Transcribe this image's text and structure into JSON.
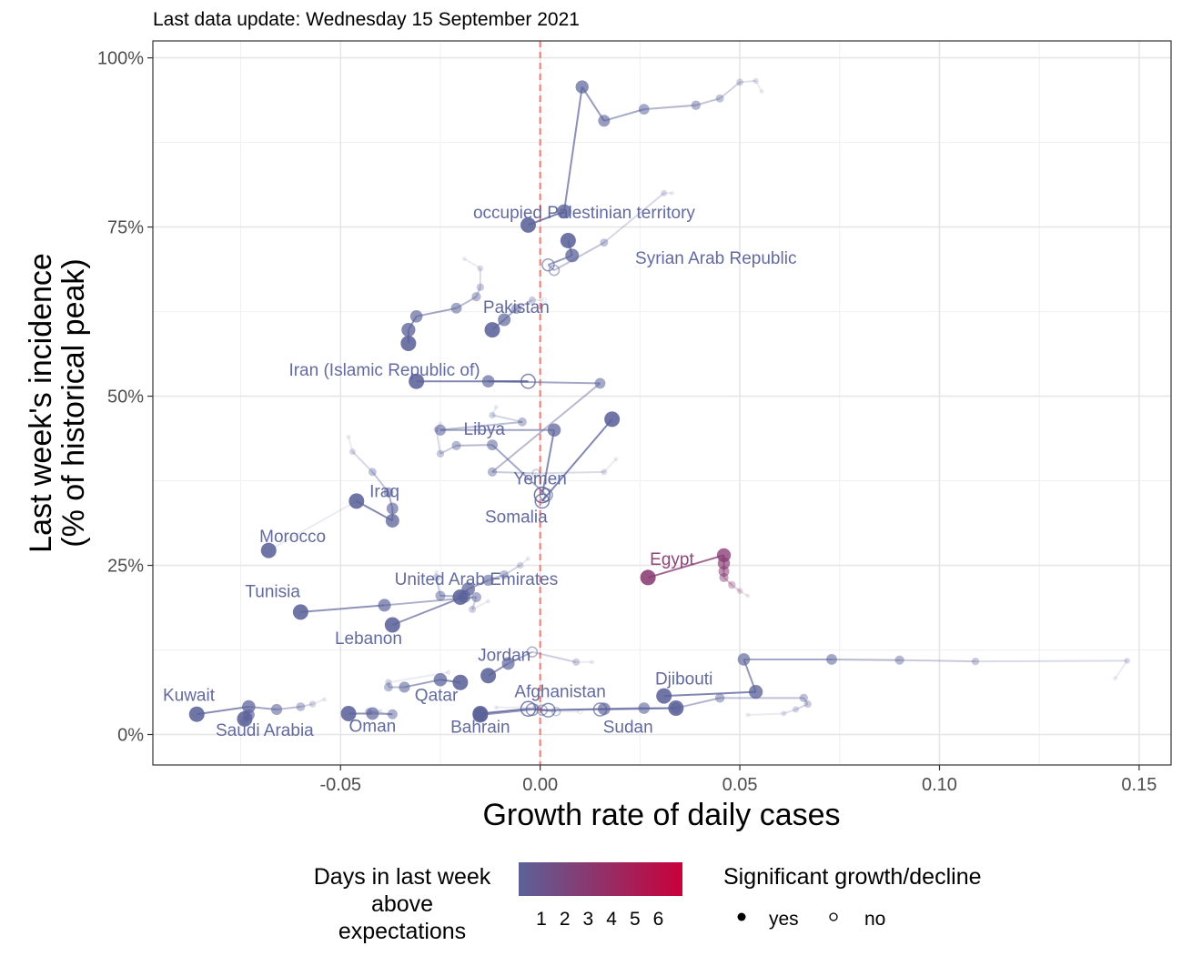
{
  "chart_data": {
    "type": "scatter",
    "subtitle": "Last data update: Wednesday 15 September 2021",
    "xlabel": "Growth rate of daily cases",
    "ylabel_lines": [
      "Last week's incidence",
      "(% of historical peak)"
    ],
    "xlim": [
      -0.097,
      0.158
    ],
    "ylim": [
      -0.045,
      1.025
    ],
    "x_ticks": [
      -0.05,
      0.0,
      0.05,
      0.1,
      0.15
    ],
    "x_tick_labels": [
      "-0.05",
      "0.00",
      "0.05",
      "0.10",
      "0.15"
    ],
    "y_ticks": [
      0,
      0.25,
      0.5,
      0.75,
      1.0
    ],
    "y_tick_labels": [
      "0%",
      "25%",
      "50%",
      "75%",
      "100%"
    ],
    "reference_line_x": 0.0,
    "grid": true,
    "colors": {
      "days_1": "#5b6299",
      "days_6": "#c9003a",
      "reference_line": "#f8766d"
    },
    "legend": {
      "position": "bottom",
      "color_title_lines": [
        "Days in last week",
        "above",
        "expectations"
      ],
      "color_gradient": [
        "#5b6299",
        "#c9003a"
      ],
      "color_ticks": [
        "1",
        "2",
        "3",
        "4",
        "5",
        "6"
      ],
      "shape_title": "Significant growth/decline",
      "shape_items": [
        "yes",
        "no"
      ]
    },
    "series": [
      {
        "name": "occupied Palestinian territory",
        "days": 1,
        "label_pos": [
          0.011,
          0.763
        ],
        "points": [
          [
            -0.003,
            0.753,
            1
          ],
          [
            0.006,
            0.773,
            1
          ],
          [
            0.0105,
            0.957,
            1
          ],
          [
            0.016,
            0.907,
            1
          ],
          [
            0.026,
            0.924,
            1
          ],
          [
            0.039,
            0.93,
            1
          ],
          [
            0.045,
            0.94,
            1
          ],
          [
            0.05,
            0.964,
            1
          ],
          [
            0.054,
            0.966,
            1
          ],
          [
            0.0555,
            0.95,
            1
          ]
        ]
      },
      {
        "name": "Syrian Arab Republic",
        "days": 1,
        "label_pos": [
          0.044,
          0.696
        ],
        "points": [
          [
            0.007,
            0.73,
            1
          ],
          [
            0.008,
            0.708,
            1
          ],
          [
            0.002,
            0.694,
            0
          ],
          [
            0.0035,
            0.686,
            0
          ],
          [
            0.016,
            0.727,
            1
          ],
          [
            0.031,
            0.8,
            1
          ],
          [
            0.033,
            0.8,
            1
          ]
        ]
      },
      {
        "name": "Pakistan",
        "days": 1,
        "label_pos": [
          -0.006,
          0.623
        ],
        "points": [
          [
            -0.012,
            0.598,
            1
          ],
          [
            -0.009,
            0.613,
            1
          ],
          [
            -0.006,
            0.629,
            1
          ],
          [
            -0.002,
            0.642,
            1
          ],
          [
            0.001,
            0.642,
            0
          ]
        ]
      },
      {
        "name": "Iran (Islamic Republic of)",
        "days": 1,
        "label_pos": [
          -0.039,
          0.53
        ],
        "points": [
          [
            -0.033,
            0.578,
            1
          ],
          [
            -0.033,
            0.598,
            1
          ],
          [
            -0.031,
            0.618,
            1
          ],
          [
            -0.021,
            0.63,
            1
          ],
          [
            -0.016,
            0.647,
            1
          ],
          [
            -0.015,
            0.661,
            1
          ],
          [
            -0.015,
            0.689,
            1
          ],
          [
            -0.019,
            0.703,
            1
          ]
        ]
      },
      {
        "name": "Libya",
        "days": 1,
        "label_pos": [
          -0.014,
          0.443
        ],
        "points": [
          [
            -0.031,
            0.522,
            1
          ],
          [
            -0.003,
            0.522,
            0
          ],
          [
            -0.013,
            0.522,
            1
          ],
          [
            0.015,
            0.519,
            1
          ],
          [
            -0.012,
            0.388,
            1
          ],
          [
            -0.001,
            0.386,
            0
          ],
          [
            0.016,
            0.388,
            1
          ],
          [
            0.019,
            0.407,
            1
          ]
        ]
      },
      {
        "name": "Yemen",
        "days": 1,
        "label_pos": [
          0.0,
          0.37
        ],
        "points": [
          [
            0.018,
            0.466,
            1
          ],
          [
            0.0005,
            0.345,
            0
          ],
          [
            0.0015,
            0.354,
            0
          ],
          [
            -0.012,
            0.428,
            1
          ],
          [
            -0.021,
            0.427,
            1
          ],
          [
            -0.025,
            0.415,
            1
          ],
          [
            -0.026,
            0.451,
            1
          ],
          [
            -0.025,
            0.459,
            1
          ]
        ]
      },
      {
        "name": "Somalia",
        "days": 1,
        "label_pos": [
          -0.006,
          0.313
        ],
        "points": [
          [
            0.0005,
            0.354,
            0
          ],
          [
            0.0035,
            0.45,
            1
          ],
          [
            -0.025,
            0.45,
            1
          ],
          [
            -0.0045,
            0.462,
            1
          ],
          [
            -0.012,
            0.472,
            1
          ],
          [
            -0.011,
            0.484,
            1
          ]
        ]
      },
      {
        "name": "Iraq",
        "days": 1,
        "label_pos": [
          -0.039,
          0.351
        ],
        "points": [
          [
            -0.046,
            0.345,
            1
          ],
          [
            -0.037,
            0.316,
            1
          ],
          [
            -0.037,
            0.334,
            1
          ],
          [
            -0.038,
            0.358,
            1
          ],
          [
            -0.042,
            0.388,
            1
          ],
          [
            -0.047,
            0.418,
            1
          ],
          [
            -0.048,
            0.44,
            1
          ]
        ]
      },
      {
        "name": "Morocco",
        "days": 1,
        "label_pos": [
          -0.062,
          0.284
        ],
        "points": [
          [
            -0.068,
            0.272,
            1
          ],
          [
            -0.046,
            0.345,
            1
          ]
        ]
      },
      {
        "name": "United Arab Emirates",
        "days": 1,
        "label_pos": [
          -0.016,
          0.221
        ],
        "points": [
          [
            -0.02,
            0.203,
            1
          ],
          [
            -0.018,
            0.215,
            1
          ],
          [
            -0.013,
            0.228,
            1
          ],
          [
            -0.009,
            0.236,
            1
          ],
          [
            -0.005,
            0.25,
            1
          ],
          [
            -0.003,
            0.26,
            1
          ]
        ]
      },
      {
        "name": "Tunisia",
        "days": 1,
        "label_pos": [
          -0.067,
          0.203
        ],
        "points": [
          [
            -0.06,
            0.181,
            1
          ],
          [
            -0.039,
            0.191,
            1
          ],
          [
            -0.016,
            0.203,
            1
          ],
          [
            -0.017,
            0.185,
            1
          ],
          [
            -0.013,
            0.197,
            1
          ]
        ]
      },
      {
        "name": "Lebanon",
        "days": 1,
        "label_pos": [
          -0.043,
          0.134
        ],
        "points": [
          [
            -0.037,
            0.162,
            1
          ],
          [
            -0.019,
            0.204,
            1
          ],
          [
            -0.025,
            0.205,
            1
          ],
          [
            -0.026,
            0.232,
            1
          ],
          [
            -0.026,
            0.24,
            1
          ]
        ]
      },
      {
        "name": "Egypt",
        "days": 3,
        "label_pos": [
          0.033,
          0.251
        ],
        "points": [
          [
            0.027,
            0.232,
            3
          ],
          [
            0.046,
            0.265,
            4
          ],
          [
            0.046,
            0.253,
            3
          ],
          [
            0.046,
            0.241,
            3
          ],
          [
            0.046,
            0.232,
            3
          ],
          [
            0.048,
            0.221,
            2
          ],
          [
            0.05,
            0.212,
            2
          ],
          [
            0.052,
            0.205,
            1
          ]
        ]
      },
      {
        "name": "Jordan",
        "days": 1,
        "label_pos": [
          -0.009,
          0.109
        ],
        "points": [
          [
            -0.013,
            0.087,
            1
          ],
          [
            -0.008,
            0.105,
            1
          ],
          [
            -0.002,
            0.122,
            0
          ],
          [
            0.009,
            0.107,
            1
          ],
          [
            0.013,
            0.107,
            1
          ]
        ]
      },
      {
        "name": "Djibouti",
        "days": 1,
        "label_pos": [
          0.036,
          0.074
        ],
        "points": [
          [
            0.031,
            0.057,
            1
          ],
          [
            0.054,
            0.063,
            1
          ],
          [
            0.051,
            0.111,
            1
          ],
          [
            0.073,
            0.111,
            1
          ],
          [
            0.09,
            0.11,
            1
          ],
          [
            0.109,
            0.108,
            1
          ],
          [
            0.147,
            0.109,
            1
          ],
          [
            0.144,
            0.083,
            1
          ]
        ]
      },
      {
        "name": "Afghanistan",
        "days": 1,
        "label_pos": [
          0.005,
          0.055
        ],
        "points": [
          [
            -0.015,
            0.031,
            1
          ],
          [
            -0.003,
            0.038,
            0
          ],
          [
            0.002,
            0.036,
            0
          ],
          [
            0.016,
            0.038,
            1
          ],
          [
            0.026,
            0.039,
            1
          ],
          [
            0.034,
            0.039,
            1
          ],
          [
            0.045,
            0.054,
            1
          ],
          [
            0.066,
            0.054,
            1
          ],
          [
            0.067,
            0.045,
            1
          ],
          [
            0.064,
            0.037,
            1
          ],
          [
            0.061,
            0.031,
            1
          ],
          [
            0.052,
            0.029,
            1
          ]
        ]
      },
      {
        "name": "Sudan",
        "days": 1,
        "label_pos": [
          0.022,
          0.003
        ],
        "points": [
          [
            0.034,
            0.039,
            1
          ],
          [
            0.015,
            0.037,
            0
          ],
          [
            0.0005,
            0.036,
            0
          ],
          [
            -0.001,
            0.04,
            1
          ],
          [
            -0.011,
            0.04,
            1
          ]
        ]
      },
      {
        "name": "Qatar",
        "days": 1,
        "label_pos": [
          -0.026,
          0.05
        ],
        "points": [
          [
            -0.02,
            0.077,
            1
          ],
          [
            -0.025,
            0.081,
            1
          ],
          [
            -0.034,
            0.07,
            1
          ],
          [
            -0.038,
            0.07,
            1
          ],
          [
            -0.038,
            0.077,
            1
          ],
          [
            -0.023,
            0.092,
            1
          ]
        ]
      },
      {
        "name": "Kuwait",
        "days": 1,
        "label_pos": [
          -0.088,
          0.05
        ],
        "points": [
          [
            -0.086,
            0.03,
            1
          ],
          [
            -0.073,
            0.041,
            1
          ],
          [
            -0.066,
            0.037,
            1
          ],
          [
            -0.06,
            0.041,
            1
          ],
          [
            -0.057,
            0.045,
            1
          ],
          [
            -0.054,
            0.052,
            1
          ]
        ]
      },
      {
        "name": "Saudi Arabia",
        "days": 1,
        "label_pos": [
          -0.069,
          -0.002
        ],
        "points": [
          [
            -0.074,
            0.023,
            1
          ],
          [
            -0.073,
            0.029,
            1
          ],
          [
            -0.074,
            0.02,
            1
          ],
          [
            -0.072,
            0.03,
            1
          ]
        ]
      },
      {
        "name": "Oman",
        "days": 1,
        "label_pos": [
          -0.042,
          0.004
        ],
        "points": [
          [
            -0.048,
            0.031,
            1
          ],
          [
            -0.042,
            0.031,
            1
          ],
          [
            -0.037,
            0.03,
            1
          ],
          [
            -0.043,
            0.034,
            1
          ],
          [
            -0.04,
            0.035,
            1
          ]
        ]
      },
      {
        "name": "Bahrain",
        "days": 1,
        "label_pos": [
          -0.015,
          0.003
        ],
        "points": [
          [
            -0.015,
            0.029,
            1
          ],
          [
            -0.002,
            0.037,
            0
          ],
          [
            0.004,
            0.034,
            0
          ],
          [
            0.01,
            0.034,
            0
          ]
        ]
      }
    ]
  }
}
